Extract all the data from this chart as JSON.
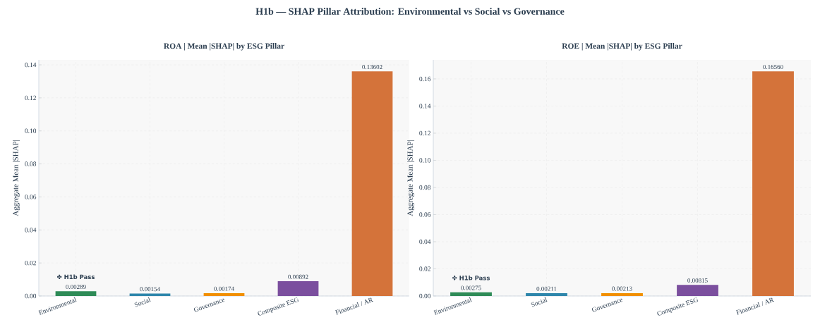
{
  "chart_data": [
    {
      "type": "bar",
      "title": "H1b — SHAP Pillar Attribution: Environmental vs Social vs Governance",
      "subtitle": "ROA   |   Mean |SHAP| by ESG Pillar",
      "ylabel": "Aggregate Mean |SHAP|",
      "categories": [
        "Environmental",
        "Social",
        "Governance",
        "Composite ESG",
        "Financial / AR"
      ],
      "values": [
        0.00289,
        0.00154,
        0.00174,
        0.00892,
        0.13602
      ],
      "value_labels": [
        "0.00289",
        "0.00154",
        "0.00174",
        "0.00892",
        "0.13602"
      ],
      "colors": [
        "#2e8b57",
        "#2e86ab",
        "#f18f01",
        "#7b4f9e",
        "#d4733a"
      ],
      "ylim": [
        0,
        0.143
      ],
      "yticks": [
        {
          "value": 0,
          "label": "0.00"
        },
        {
          "value": 0.02,
          "label": "0.02"
        },
        {
          "value": 0.04,
          "label": "0.04"
        },
        {
          "value": 0.06,
          "label": "0.06"
        },
        {
          "value": 0.08,
          "label": "0.08"
        },
        {
          "value": 0.1,
          "label": "0.10"
        },
        {
          "value": 0.12,
          "label": "0.12"
        },
        {
          "value": 0.14,
          "label": "0.14"
        }
      ],
      "grid": true,
      "annotations": [
        "✤ H1b Pass"
      ]
    },
    {
      "type": "bar",
      "subtitle": "ROE   |   Mean |SHAP| by ESG Pillar",
      "ylabel": "Aggregate Mean |SHAP|",
      "categories": [
        "Environmental",
        "Social",
        "Governance",
        "Composite ESG",
        "Financial / AR"
      ],
      "values": [
        0.00275,
        0.00211,
        0.00213,
        0.00815,
        0.1656
      ],
      "value_labels": [
        "0.00275",
        "0.00211",
        "0.00213",
        "0.00815",
        "0.16560"
      ],
      "colors": [
        "#2e8b57",
        "#2e86ab",
        "#f18f01",
        "#7b4f9e",
        "#d4733a"
      ],
      "ylim": [
        0,
        0.174
      ],
      "yticks": [
        {
          "value": 0,
          "label": "0.00"
        },
        {
          "value": 0.02,
          "label": "0.02"
        },
        {
          "value": 0.04,
          "label": "0.04"
        },
        {
          "value": 0.06,
          "label": "0.06"
        },
        {
          "value": 0.08,
          "label": "0.08"
        },
        {
          "value": 0.1,
          "label": "0.10"
        },
        {
          "value": 0.12,
          "label": "0.12"
        },
        {
          "value": 0.14,
          "label": "0.14"
        },
        {
          "value": 0.16,
          "label": "0.16"
        }
      ],
      "grid": true,
      "annotations": [
        "✤ H1b Pass"
      ]
    }
  ]
}
